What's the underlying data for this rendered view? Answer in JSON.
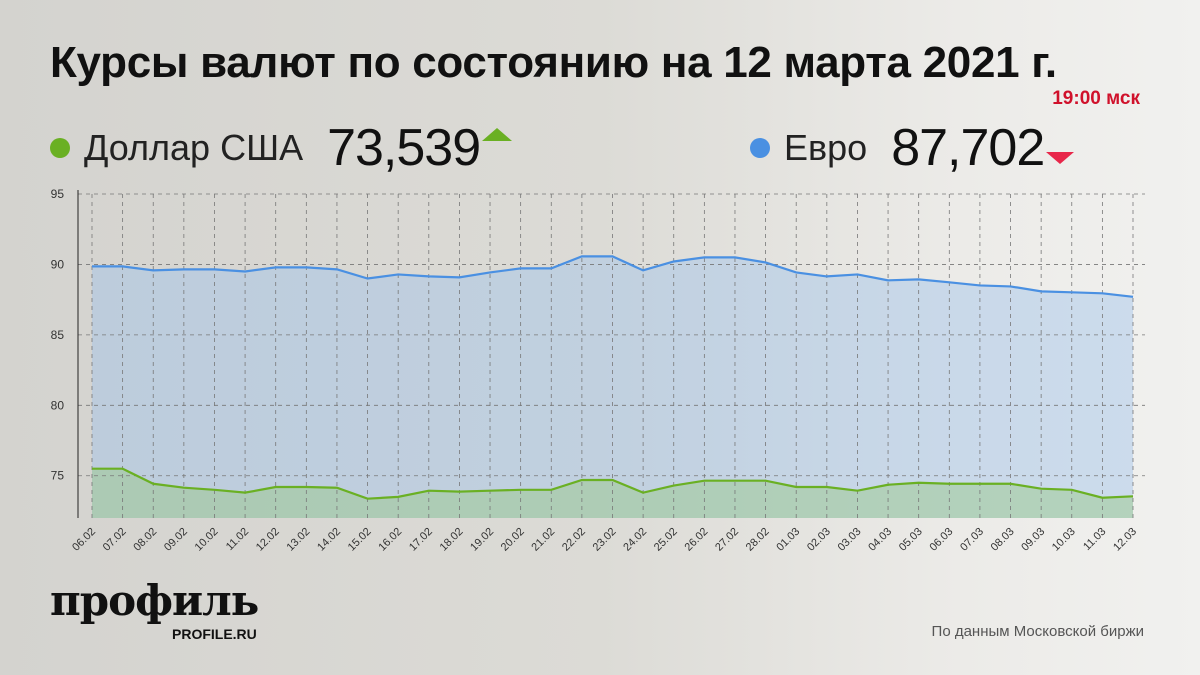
{
  "header": {
    "title": "Курсы валют по состоянию на 12 марта 2021 г.",
    "time": "19:00 мск"
  },
  "legend": [
    {
      "name": "Доллар США",
      "value": "73,539",
      "trend": "up",
      "color": "#6ab023"
    },
    {
      "name": "Евро",
      "value": "87,702",
      "trend": "down",
      "color": "#4a90e2"
    }
  ],
  "footer": {
    "logo": "профиль",
    "logo_sub": "PROFILE.RU",
    "source": "По данным Московской биржи"
  },
  "chart_data": {
    "type": "area",
    "categories": [
      "06.02",
      "07.02",
      "08.02",
      "09.02",
      "10.02",
      "11.02",
      "12.02",
      "13.02",
      "14.02",
      "15.02",
      "16.02",
      "17.02",
      "18.02",
      "19.02",
      "20.02",
      "21.02",
      "22.02",
      "23.02",
      "24.02",
      "25.02",
      "26.02",
      "27.02",
      "28.02",
      "01.03",
      "02.03",
      "03.03",
      "04.03",
      "05.03",
      "06.03",
      "07.03",
      "08.03",
      "09.03",
      "10.03",
      "11.03",
      "12.03"
    ],
    "series": [
      {
        "name": "Евро",
        "color": "#4a90e2",
        "values": [
          89.86,
          89.86,
          89.58,
          89.65,
          89.65,
          89.5,
          89.79,
          89.79,
          89.65,
          89.0,
          89.29,
          89.15,
          89.08,
          89.43,
          89.72,
          89.72,
          90.57,
          90.57,
          89.58,
          90.21,
          90.5,
          90.5,
          90.14,
          89.43,
          89.15,
          89.29,
          88.87,
          88.94,
          88.73,
          88.51,
          88.44,
          88.09,
          88.02,
          87.95,
          87.7
        ]
      },
      {
        "name": "Доллар США",
        "color": "#6ab023",
        "values": [
          75.5,
          75.5,
          74.43,
          74.15,
          74.0,
          73.8,
          74.2,
          74.2,
          74.15,
          73.37,
          73.5,
          73.94,
          73.87,
          73.94,
          74.0,
          74.0,
          74.7,
          74.7,
          73.8,
          74.3,
          74.65,
          74.65,
          74.65,
          74.2,
          74.2,
          73.94,
          74.36,
          74.5,
          74.43,
          74.43,
          74.43,
          74.08,
          74.0,
          73.44,
          73.54
        ]
      }
    ],
    "yticks": [
      75,
      80,
      85,
      90,
      95
    ],
    "ylim": [
      72,
      95
    ],
    "grid": true
  }
}
